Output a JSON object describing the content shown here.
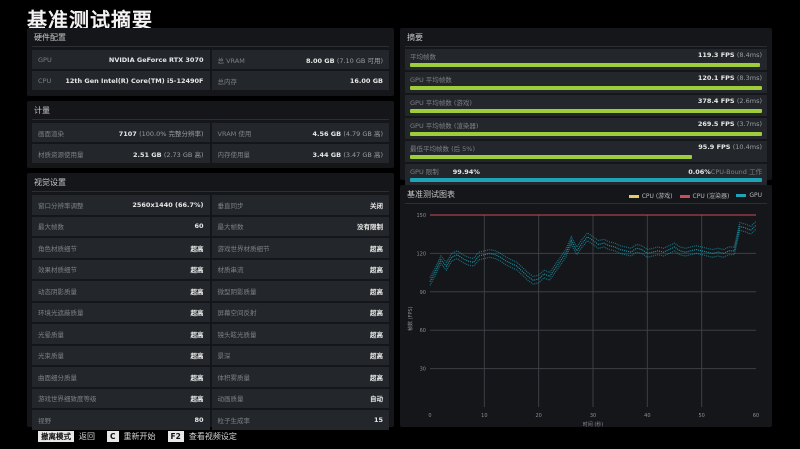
{
  "page_title": "基准测试摘要",
  "hardware": {
    "title": "硬件配置",
    "rows": [
      {
        "k": "GPU",
        "v": "NVIDIA GeForce RTX 3070",
        "sub": ""
      },
      {
        "k": "总 VRAM",
        "v": "8.00 GB",
        "sub": "(7.10 GB 可用)"
      },
      {
        "k": "CPU",
        "v": "12th Gen Intel(R) Core(TM) i5-12490F",
        "sub": ""
      },
      {
        "k": "总内存",
        "v": "16.00 GB",
        "sub": ""
      }
    ]
  },
  "metrics": {
    "title": "计量",
    "rows": [
      {
        "k": "画面渲染",
        "v": "7107",
        "sub": "(100.0% 完整分辨率)"
      },
      {
        "k": "VRAM 使用",
        "v": "4.56 GB",
        "sub": "(4.79 GB 高)"
      },
      {
        "k": "材质资源使用量",
        "v": "2.51 GB",
        "sub": "(2.73 GB 高)"
      },
      {
        "k": "内存使用量",
        "v": "3.44 GB",
        "sub": "(3.47 GB 高)"
      }
    ]
  },
  "visual": {
    "title": "视觉设置",
    "rows": [
      {
        "k": "窗口分辨率调整",
        "v": "2560x1440 (66.7%)"
      },
      {
        "k": "垂直同步",
        "v": "关闭"
      },
      {
        "k": "最大帧数",
        "v": "60"
      },
      {
        "k": "最大帧数",
        "v": "没有限制"
      },
      {
        "k": "角色材质细节",
        "v": "超高"
      },
      {
        "k": "游戏世界材质细节",
        "v": "超高"
      },
      {
        "k": "效果材质细节",
        "v": "超高"
      },
      {
        "k": "材质串流",
        "v": "超高"
      },
      {
        "k": "动态阴影质量",
        "v": "超高"
      },
      {
        "k": "微型阴影质量",
        "v": "超高"
      },
      {
        "k": "环境光遮蔽质量",
        "v": "超高"
      },
      {
        "k": "屏幕空间反射",
        "v": "超高"
      },
      {
        "k": "光晕质量",
        "v": "超高"
      },
      {
        "k": "镜头眩光质量",
        "v": "超高"
      },
      {
        "k": "光束质量",
        "v": "超高"
      },
      {
        "k": "景深",
        "v": "超高"
      },
      {
        "k": "曲面细分质量",
        "v": "超高"
      },
      {
        "k": "体积雾质量",
        "v": "超高"
      },
      {
        "k": "游戏世界细致度等级",
        "v": "超高"
      },
      {
        "k": "动画质量",
        "v": "自动"
      },
      {
        "k": "视野",
        "v": "80"
      },
      {
        "k": "粒子生成率",
        "v": "15"
      }
    ]
  },
  "summary": {
    "title": "摘要",
    "rows": [
      {
        "k": "平均帧数",
        "v": "119.3 FPS",
        "sub": "(8.4ms)",
        "pct": 99.5
      },
      {
        "k": "GPU 平均帧数",
        "v": "120.1 FPS",
        "sub": "(8.3ms)",
        "pct": 100
      },
      {
        "k": "GPU 平均帧数 (游戏)",
        "v": "378.4 FPS",
        "sub": "(2.6ms)",
        "pct": 100
      },
      {
        "k": "GPU 平均帧数 (渲染器)",
        "v": "269.5 FPS",
        "sub": "(3.7ms)",
        "pct": 100
      },
      {
        "k": "最低平均帧数 (后 5%)",
        "v": "95.9 FPS",
        "sub": "(10.4ms)",
        "pct": 80
      }
    ],
    "gpu_limit": {
      "k": "GPU 限制",
      "gpu_pct": "99.94%",
      "cpu_pct": "0.06%",
      "cpu_label": "CPU-Bound 工作",
      "pct": 100
    }
  },
  "chart": {
    "title": "基准测试图表",
    "legend": [
      {
        "label": "CPU (游戏)",
        "color": "#e8c96a"
      },
      {
        "label": "CPU (渲染器)",
        "color": "#d04a5a"
      },
      {
        "label": "GPU",
        "color": "#1fa3b8"
      }
    ],
    "ylabel": "帧数 (FPS)",
    "xlabel": "时间 (秒)"
  },
  "chart_data": {
    "type": "scatter",
    "title": "基准测试图表",
    "xlabel": "时间 (秒)",
    "ylabel": "帧数 (FPS)",
    "xlim": [
      0,
      60
    ],
    "ylim": [
      0,
      150
    ],
    "x_ticks": [
      0,
      10,
      20,
      30,
      40,
      50,
      60
    ],
    "y_ticks": [
      30,
      60,
      90,
      120,
      150
    ],
    "grid": true,
    "legend_position": "top-right",
    "series": [
      {
        "name": "CPU (游戏)",
        "color": "#e8c96a",
        "x": [],
        "y": []
      },
      {
        "name": "CPU (渲染器)",
        "color": "#d04a5a",
        "x": [
          0,
          60
        ],
        "y": [
          150,
          150
        ]
      },
      {
        "name": "GPU",
        "color": "#1fa3b8",
        "x": [
          0,
          1,
          2,
          3,
          4,
          5,
          6,
          7,
          8,
          9,
          10,
          11,
          12,
          13,
          14,
          15,
          16,
          17,
          18,
          19,
          20,
          21,
          22,
          23,
          24,
          25,
          26,
          27,
          28,
          29,
          30,
          31,
          32,
          33,
          34,
          35,
          36,
          37,
          38,
          39,
          40,
          41,
          42,
          43,
          44,
          45,
          46,
          47,
          48,
          49,
          50,
          51,
          52,
          53,
          54,
          55,
          56,
          57,
          58,
          59,
          60
        ],
        "y": [
          98,
          106,
          115,
          110,
          117,
          119,
          116,
          114,
          113,
          118,
          119,
          120,
          119,
          117,
          114,
          112,
          110,
          106,
          102,
          99,
          100,
          104,
          102,
          108,
          114,
          120,
          130,
          122,
          128,
          133,
          130,
          127,
          128,
          126,
          125,
          123,
          122,
          121,
          124,
          123,
          120,
          121,
          122,
          121,
          123,
          125,
          122,
          121,
          122,
          123,
          122,
          121,
          120,
          121,
          120,
          122,
          122,
          141,
          140,
          138,
          142
        ]
      }
    ]
  },
  "footer": {
    "items": [
      {
        "key": "撤离模式",
        "label": "返回"
      },
      {
        "key": "C",
        "label": "重新开始"
      },
      {
        "key": "F2",
        "label": "查看视频设定"
      }
    ]
  }
}
